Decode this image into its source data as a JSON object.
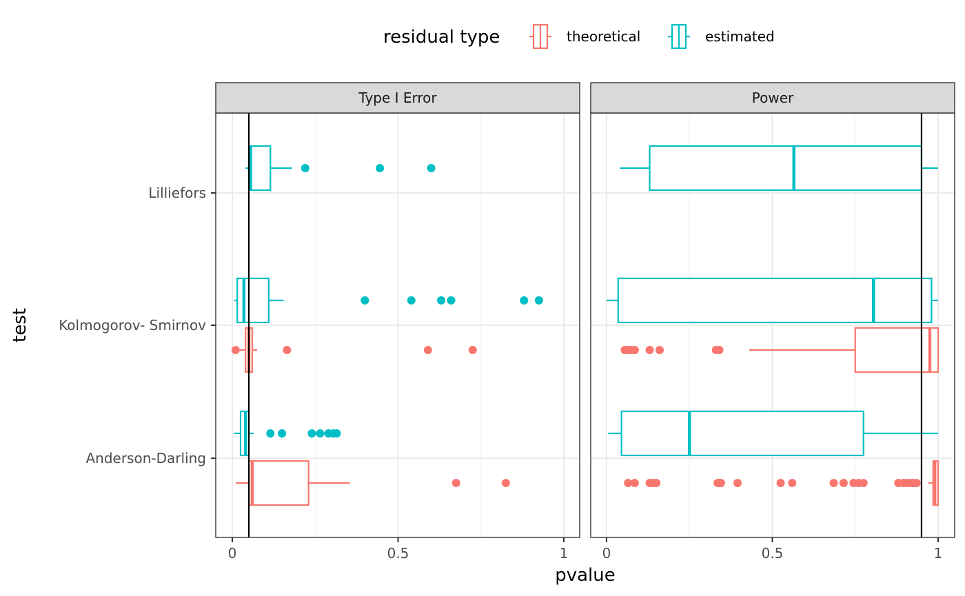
{
  "chart_data": {
    "type": "boxplot",
    "xlabel": "pvalue",
    "ylabel": "test",
    "xlim": [
      0,
      1
    ],
    "x_ticks": [
      "0",
      "0.5",
      "1"
    ],
    "x_tick_values": [
      0,
      0.5,
      1
    ],
    "categories": [
      "Lilliefors",
      "Kolmogorov- Smirnov",
      "Anderson-Darling"
    ],
    "orientation": "horizontal",
    "grid": true,
    "legend": {
      "title": "residual type",
      "position": "top",
      "entries": [
        {
          "label": "theoretical",
          "color": "#F8766D"
        },
        {
          "label": "estimated",
          "color": "#00BFC4"
        }
      ]
    },
    "facets": [
      {
        "label": "Type I Error",
        "reference_line": 0.05,
        "groups": [
          {
            "test": "Lilliefors",
            "series": "estimated",
            "min": 0.04,
            "q1": 0.05,
            "median": 0.055,
            "q3": 0.115,
            "max": 0.18,
            "outliers": [
              0.22,
              0.445,
              0.6
            ]
          },
          {
            "test": "Kolmogorov- Smirnov",
            "series": "estimated",
            "min": 0.005,
            "q1": 0.015,
            "median": 0.035,
            "q3": 0.11,
            "max": 0.155,
            "outliers": [
              0.4,
              0.54,
              0.63,
              0.66,
              0.88,
              0.925
            ]
          },
          {
            "test": "Kolmogorov- Smirnov",
            "series": "theoretical",
            "min": 0.01,
            "q1": 0.04,
            "median": 0.05,
            "q3": 0.06,
            "max": 0.075,
            "outliers": [
              0.01,
              0.165,
              0.59,
              0.725
            ]
          },
          {
            "test": "Anderson-Darling",
            "series": "estimated",
            "min": 0.005,
            "q1": 0.025,
            "median": 0.04,
            "q3": 0.05,
            "max": 0.065,
            "outliers": [
              0.115,
              0.15,
              0.24,
              0.265,
              0.29,
              0.305,
              0.315
            ]
          },
          {
            "test": "Anderson-Darling",
            "series": "theoretical",
            "min": 0.01,
            "q1": 0.05,
            "median": 0.06,
            "q3": 0.23,
            "max": 0.355,
            "outliers": [
              0.675,
              0.825
            ]
          }
        ]
      },
      {
        "label": "Power",
        "reference_line": 0.95,
        "groups": [
          {
            "test": "Lilliefors",
            "series": "estimated",
            "min": 0.04,
            "q1": 0.13,
            "median": 0.565,
            "q3": 0.95,
            "max": 1.0,
            "outliers": []
          },
          {
            "test": "Kolmogorov- Smirnov",
            "series": "estimated",
            "min": 0.0,
            "q1": 0.035,
            "median": 0.805,
            "q3": 0.98,
            "max": 1.0,
            "outliers": []
          },
          {
            "test": "Kolmogorov- Smirnov",
            "series": "theoretical",
            "min": 0.43,
            "q1": 0.75,
            "median": 0.975,
            "q3": 1.0,
            "max": 1.0,
            "outliers": [
              0.055,
              0.065,
              0.075,
              0.085,
              0.13,
              0.16,
              0.33,
              0.34
            ]
          },
          {
            "test": "Anderson-Darling",
            "series": "estimated",
            "min": 0.005,
            "q1": 0.045,
            "median": 0.25,
            "q3": 0.775,
            "max": 1.0,
            "outliers": []
          },
          {
            "test": "Anderson-Darling",
            "series": "theoretical",
            "min": 0.97,
            "q1": 0.985,
            "median": 0.99,
            "q3": 1.0,
            "max": 1.0,
            "outliers": [
              0.065,
              0.085,
              0.13,
              0.14,
              0.15,
              0.335,
              0.34,
              0.345,
              0.395,
              0.525,
              0.56,
              0.685,
              0.715,
              0.745,
              0.76,
              0.775,
              0.88,
              0.895,
              0.905,
              0.915,
              0.925,
              0.935
            ]
          }
        ]
      }
    ]
  }
}
